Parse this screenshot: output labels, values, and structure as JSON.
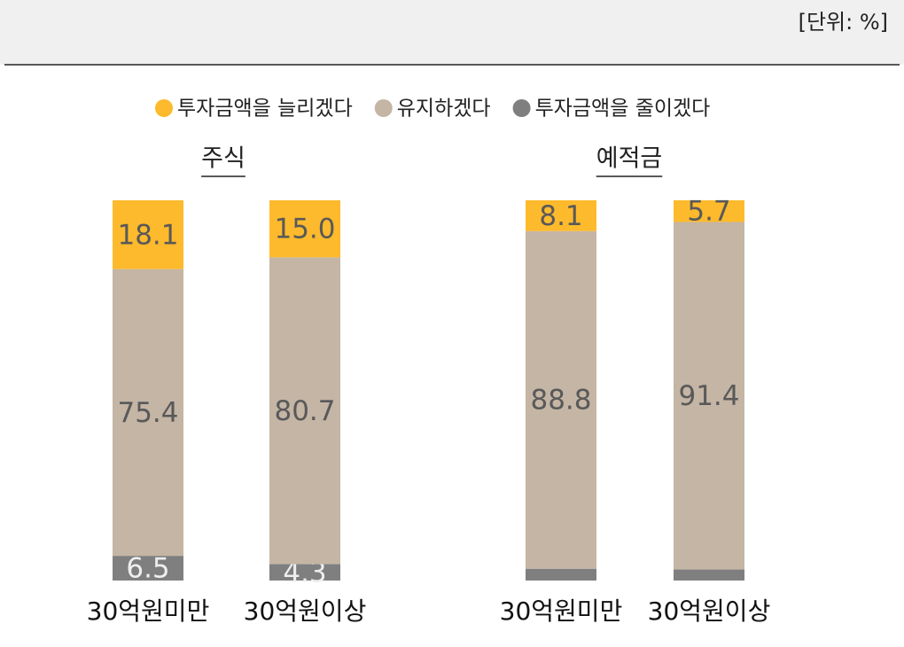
{
  "chart_data": {
    "type": "bar",
    "stacked": true,
    "note": "[단위: %]",
    "series": [
      {
        "name": "투자금액을 늘리겠다",
        "color": "#fdba2c"
      },
      {
        "name": "유지하겠다",
        "color": "#c4b5a5"
      },
      {
        "name": "투자금액을 줄이겠다",
        "color": "#7f7f7f"
      }
    ],
    "panels": [
      {
        "title": "주식",
        "categories": [
          "30억원미만",
          "30억원이상"
        ],
        "series": [
          {
            "values": [
              18.1,
              15.0
            ],
            "value_labels": [
              "18.1",
              "15.0"
            ]
          },
          {
            "values": [
              75.4,
              80.7
            ]
          },
          {
            "values": [
              6.5,
              4.3
            ]
          }
        ]
      },
      {
        "title": "예적금",
        "categories": [
          "30억원미만",
          "30억원이상"
        ],
        "series": [
          {
            "values": [
              8.1,
              5.7
            ]
          },
          {
            "values": [
              88.8,
              91.4
            ]
          },
          {
            "values": [
              3.1,
              2.9
            ]
          }
        ]
      }
    ]
  }
}
